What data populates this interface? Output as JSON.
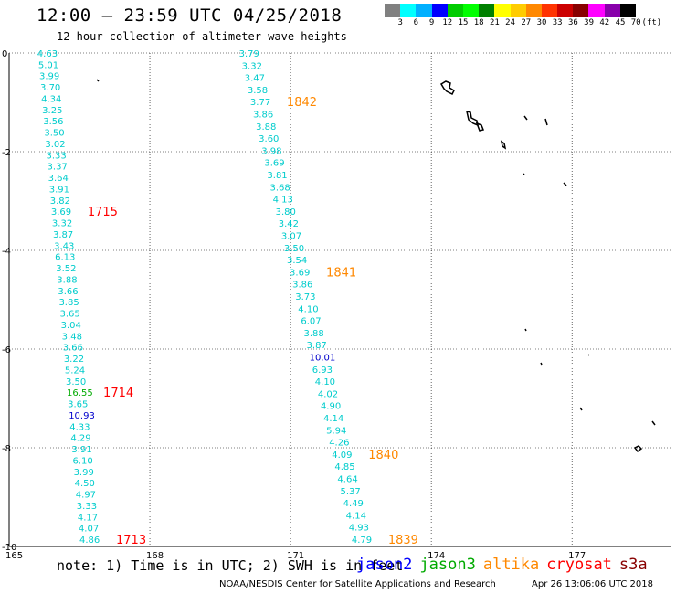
{
  "header": {
    "title": "12:00 — 23:59 UTC 04/25/2018",
    "subtitle": "12 hour collection of altimeter wave heights"
  },
  "legend": {
    "colors": [
      "#808080",
      "#00ffff",
      "#00b0ff",
      "#0000ff",
      "#00cc00",
      "#00ff00",
      "#008000",
      "#ffff00",
      "#ffcc00",
      "#ff8800",
      "#ff3300",
      "#cc0000",
      "#880000",
      "#ff00ff",
      "#8800aa",
      "#000000"
    ],
    "labels": [
      "3",
      "6",
      "9",
      "12",
      "15",
      "18",
      "21",
      "24",
      "27",
      "30",
      "33",
      "36",
      "39",
      "42",
      "45",
      "70",
      "(ft)"
    ]
  },
  "axes": {
    "lon": {
      "min": 165,
      "max": 179.1,
      "ticks": [
        165,
        168,
        171,
        174,
        177
      ]
    },
    "lat": {
      "min": -10,
      "max": 0,
      "ticks": [
        0,
        -2,
        -4,
        -6,
        -8,
        -10
      ]
    }
  },
  "tracks": [
    {
      "id": "track-west",
      "color": "#00cccc",
      "lon_start": 165.6,
      "lon_end": 166.5,
      "values": [
        "4.63",
        "5.01",
        "3.99",
        "3.70",
        "4.34",
        "3.25",
        "3.56",
        "3.50",
        "3.02",
        "3.33",
        "3.37",
        "3.64",
        "3.91",
        "3.82",
        "3.69",
        "3.32",
        "3.87",
        "3.43",
        "6.13",
        "3.52",
        "3.88",
        "3.66",
        "3.85",
        "3.65",
        "3.04",
        "3.48",
        "3.66",
        "3.22",
        "5.24",
        "3.50",
        "16.55",
        "3.65",
        "10.93",
        "4.33",
        "4.29",
        "3.91",
        "6.10",
        "3.99",
        "4.50",
        "4.97",
        "3.33",
        "4.17",
        "4.07",
        "4.86"
      ],
      "special_colors": {
        "30": "#00aa00",
        "32": "#0000cc"
      },
      "times": [
        {
          "label": "1715",
          "at": 14,
          "color": "#ff0000"
        },
        {
          "label": "1714",
          "at": 30,
          "color": "#ff0000"
        },
        {
          "label": "1713",
          "at": 43,
          "color": "#ff0000"
        }
      ]
    },
    {
      "id": "track-east",
      "color": "#00cccc",
      "lon_start": 169.9,
      "lon_end": 172.3,
      "values": [
        "3.79",
        "3.32",
        "3.47",
        "3.58",
        "3.77",
        "3.86",
        "3.88",
        "3.60",
        "3.98",
        "3.69",
        "3.81",
        "3.68",
        "4.13",
        "3.80",
        "3.42",
        "3.07",
        "3.50",
        "3.54",
        "3.69",
        "3.86",
        "3.73",
        "4.10",
        "6.07",
        "3.88",
        "3.87",
        "10.01",
        "6.93",
        "4.10",
        "4.02",
        "4.90",
        "4.14",
        "5.94",
        "4.26",
        "4.09",
        "4.85",
        "4.64",
        "5.37",
        "4.49",
        "4.14",
        "4.93",
        "4.79"
      ],
      "special_colors": {
        "25": "#0000cc"
      },
      "times": [
        {
          "label": "1842",
          "at": 4,
          "color": "#ff8800"
        },
        {
          "label": "1841",
          "at": 18,
          "color": "#ff8800"
        },
        {
          "label": "1840",
          "at": 33,
          "color": "#ff8800"
        },
        {
          "label": "1839",
          "at": 40,
          "color": "#ff8800"
        }
      ]
    }
  ],
  "footer": {
    "note": "note: 1) Time is in UTC; 2) SWH is in feet",
    "satellites": [
      {
        "name": "jason2",
        "color": "#0000ff"
      },
      {
        "name": "jason3",
        "color": "#00aa00"
      },
      {
        "name": "altika",
        "color": "#ff8800"
      },
      {
        "name": "cryosat",
        "color": "#ff0000"
      },
      {
        "name": "s3a",
        "color": "#880000"
      }
    ],
    "credit": "NOAA/NESDIS Center for Satellite Applications and Research",
    "timestamp": "Apr 26 13:06:06 UTC 2018"
  }
}
